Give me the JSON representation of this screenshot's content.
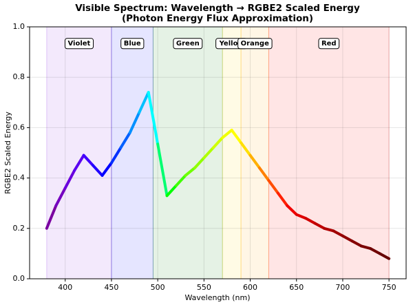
{
  "chart_data": {
    "type": "line",
    "title": "Visible Spectrum: Wavelength → RGBE2 Scaled Energy",
    "subtitle": "(Photon Energy Flux Approximation)",
    "x_label": "Wavelength (nm)",
    "y_label": "RGBE2 Scaled Energy",
    "xlim": [
      361.5,
      768.5
    ],
    "ylim": [
      0,
      1
    ],
    "xticks": [
      400,
      450,
      500,
      550,
      600,
      650,
      700,
      750
    ],
    "yticks": [
      {
        "value": 0,
        "label": "0.0"
      },
      0.2,
      0.4,
      0.6,
      0.8,
      {
        "value": 1,
        "label": "1.0"
      }
    ],
    "grid": true,
    "bands": [
      {
        "name": "Violet",
        "start": 380,
        "end": 450,
        "color": "#8a2be2"
      },
      {
        "name": "Blue",
        "start": 450,
        "end": 495,
        "color": "#0000ff"
      },
      {
        "name": "Green",
        "start": 495,
        "end": 570,
        "color": "#008000"
      },
      {
        "name": "Yellow",
        "start": 570,
        "end": 590,
        "color": "#ffd700"
      },
      {
        "name": "Orange",
        "start": 590,
        "end": 620,
        "color": "#ffa500"
      },
      {
        "name": "Red",
        "start": 620,
        "end": 750,
        "color": "#ff0000"
      }
    ],
    "x": [
      380,
      390,
      400,
      410,
      420,
      430,
      440,
      450,
      460,
      470,
      480,
      490,
      500,
      510,
      520,
      530,
      540,
      550,
      560,
      570,
      580,
      590,
      600,
      610,
      620,
      630,
      640,
      650,
      660,
      670,
      680,
      690,
      700,
      710,
      720,
      730,
      740,
      750
    ],
    "values": [
      0.2,
      0.29,
      0.36,
      0.43,
      0.49,
      0.45,
      0.41,
      0.46,
      0.52,
      0.58,
      0.66,
      0.74,
      0.535,
      0.33,
      0.37,
      0.41,
      0.44,
      0.48,
      0.52,
      0.56,
      0.59,
      0.54,
      0.49,
      0.44,
      0.39,
      0.34,
      0.29,
      0.255,
      0.24,
      0.22,
      0.2,
      0.19,
      0.17,
      0.15,
      0.13,
      0.12,
      0.1,
      0.08
    ],
    "colors": [
      "#7a00a0",
      "#7500c0",
      "#6a00dd",
      "#5a00f0",
      "#4000ff",
      "#2000ff",
      "#0000ff",
      "#0030ff",
      "#0060ff",
      "#0090ff",
      "#00c0ff",
      "#00ffff",
      "#00ff70",
      "#00ff00",
      "#40ff00",
      "#70ff00",
      "#90ff00",
      "#b0ff00",
      "#d0ff00",
      "#f0ff00",
      "#ffff00",
      "#ffdf00",
      "#ffb000",
      "#ff8000",
      "#ff4d00",
      "#ff2000",
      "#f00000",
      "#e00000",
      "#d00000",
      "#c00000",
      "#b00000",
      "#a00000",
      "#900000",
      "#850000",
      "#7a0000",
      "#700000",
      "#660000",
      "#600000"
    ]
  }
}
